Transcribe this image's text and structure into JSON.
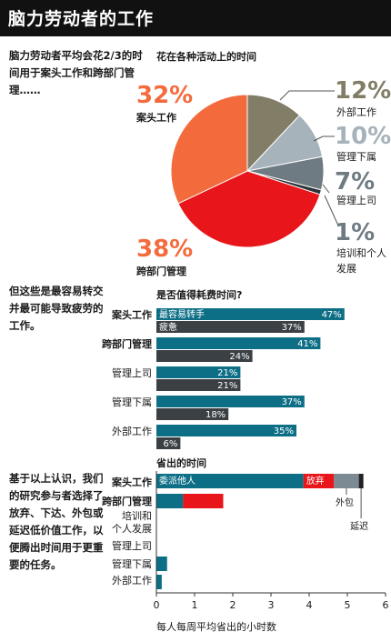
{
  "header": {
    "title": "脑力劳动者的工作"
  },
  "intro": {
    "text": "脑力劳动者平均会花2/3的时间用于案头工作和跨部门管理……"
  },
  "section2": {
    "text": "但这些是最容易转交并最可能导致疲劳的工作。"
  },
  "section3": {
    "text": "基于以上认识，我们的研究参与者选择了放弃、下达、外包或延迟低价值工作，以便腾出时间用于更重要的任务。"
  },
  "colors": {
    "desk": "#f36b3d",
    "cross": "#e8161b",
    "external": "#827d66",
    "subordinates": "#a6b3ba",
    "boss": "#6e7b82",
    "training": "#2e3338",
    "teal": "#0d6f86",
    "dark": "#3b4045",
    "red": "#e8161b",
    "gray": "#7b8a93",
    "black": "#222222"
  },
  "chart_data": [
    {
      "type": "pie",
      "title": "花在各种活动上的时间",
      "slices": [
        {
          "label": "案头工作",
          "value": 32,
          "pct": "32%",
          "color": "#f36b3d"
        },
        {
          "label": "外部工作",
          "value": 12,
          "pct": "12%",
          "color": "#827d66"
        },
        {
          "label": "管理下属",
          "value": 10,
          "pct": "10%",
          "color": "#a6b3ba"
        },
        {
          "label": "管理上司",
          "value": 7,
          "pct": "7%",
          "color": "#6e7b82"
        },
        {
          "label": "培训和个人发展",
          "value": 1,
          "pct": "1%",
          "color": "#2e3338"
        },
        {
          "label": "跨部门管理",
          "value": 38,
          "pct": "38%",
          "color": "#e8161b"
        }
      ]
    },
    {
      "type": "bar",
      "title": "是否值得耗费时间?",
      "categories": [
        "案头工作",
        "跨部门管理",
        "管理上司",
        "管理下属",
        "外部工作"
      ],
      "series": [
        {
          "name": "最容易转手",
          "values": [
            47,
            41,
            21,
            37,
            35
          ]
        },
        {
          "name": "疲惫",
          "values": [
            37,
            24,
            21,
            18,
            6
          ]
        }
      ]
    },
    {
      "type": "bar",
      "title": "省出的时间",
      "xlabel": "每人每周平均省出的小时数",
      "xlim": [
        0,
        6
      ],
      "xticks": [
        "0",
        "1",
        "2",
        "3",
        "4",
        "5",
        "6"
      ],
      "categories": [
        "案头工作",
        "跨部门管理",
        "培训和个人发展",
        "管理上司",
        "管理下属",
        "外部工作"
      ],
      "series": [
        {
          "name": "委派他人",
          "values": [
            3.85,
            0.7,
            0,
            0,
            0.28,
            0.14
          ]
        },
        {
          "name": "放弃",
          "values": [
            0.8,
            1.05,
            0,
            0,
            0,
            0
          ]
        },
        {
          "name": "外包",
          "values": [
            0.65,
            0,
            0,
            0,
            0,
            0
          ]
        },
        {
          "name": "延迟",
          "values": [
            0.12,
            0,
            0,
            0,
            0,
            0
          ]
        }
      ],
      "annotations": [
        "外包",
        "延迟"
      ]
    }
  ]
}
